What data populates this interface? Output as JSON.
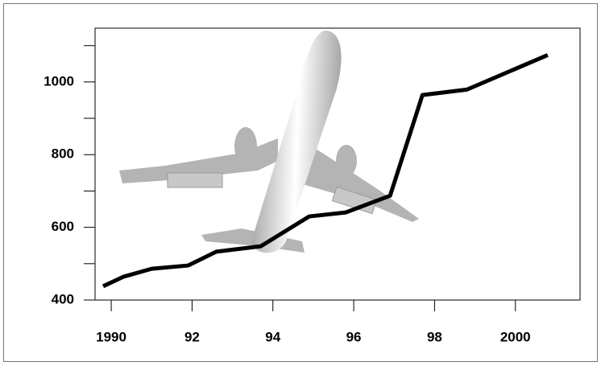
{
  "chart_data": {
    "type": "line",
    "x": [
      1989.8,
      1990.3,
      1991.0,
      1991.9,
      1992.6,
      1993.7,
      1994.9,
      1995.8,
      1996.9,
      1997.7,
      1998.8,
      2000.8
    ],
    "values": [
      438,
      464,
      486,
      495,
      533,
      548,
      630,
      641,
      687,
      964,
      979,
      1074
    ],
    "color": "#000000",
    "xlim": [
      1989.6,
      2001.6
    ],
    "xticks": [
      1990,
      {
        "value": 1992,
        "label": "92"
      },
      {
        "value": 1994,
        "label": "94"
      },
      {
        "value": 1996,
        "label": "96"
      },
      {
        "value": 1998,
        "label": "98"
      },
      2000
    ],
    "ylim": [
      400,
      1148
    ],
    "yticks": [
      400,
      600,
      800,
      1000
    ],
    "yminorticks": [
      500,
      700,
      900,
      1100
    ]
  }
}
